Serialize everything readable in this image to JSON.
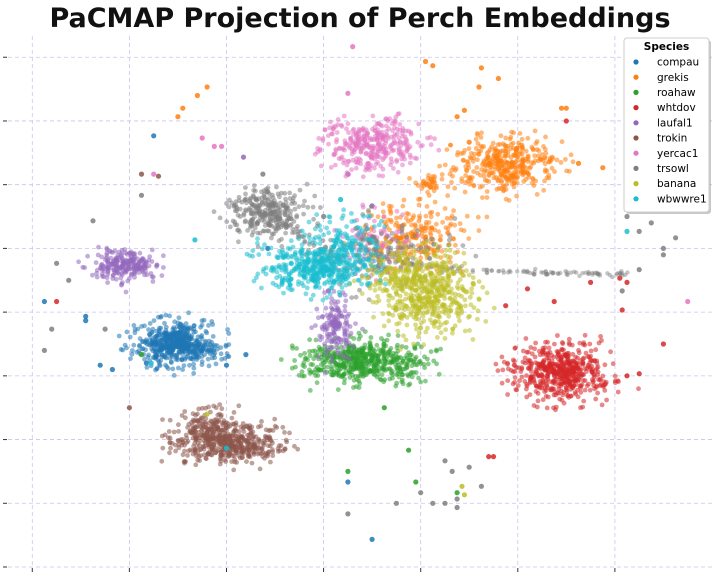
{
  "chart_data": {
    "type": "scatter",
    "title": "PaCMAP Projection of Perch Embeddings",
    "xlabel": "",
    "ylabel": "",
    "xlim": [
      -15,
      14
    ],
    "ylim": [
      -12,
      13
    ],
    "grid": true,
    "grid_style": "dashed",
    "grid_color": "#c8c3f0",
    "tick_labels_visible": false,
    "legend": {
      "title": "Species",
      "placement": "top-right"
    },
    "series": [
      {
        "name": "compau",
        "color": "#1f77b4",
        "clusters": [
          {
            "center": [
              -8.0,
              -1.5
            ],
            "spread": [
              0.75,
              0.45
            ],
            "count": 520,
            "tail": [
              [
                -6.4,
                -1.8
              ]
            ]
          }
        ],
        "outliers": [
          [
            -13.5,
            0.5
          ],
          [
            -11.8,
            -0.2
          ],
          [
            -11.8,
            -0.4
          ],
          [
            -10.7,
            -2.7
          ],
          [
            -9.3,
            -2.4
          ],
          [
            -11.2,
            -2.5
          ],
          [
            -9.0,
            8.3
          ],
          [
            -6.0,
            -2.5
          ],
          [
            -5.2,
            -2.0
          ],
          [
            -1.0,
            -8.0
          ],
          [
            0.0,
            -10.7
          ],
          [
            -4.3,
            3.0
          ]
        ]
      },
      {
        "name": "grekis",
        "color": "#ff7f0e",
        "clusters": [
          {
            "center": [
              5.5,
              7.0
            ],
            "spread": [
              0.9,
              0.55
            ],
            "count": 380
          },
          {
            "center": [
              1.8,
              3.6
            ],
            "spread": [
              1.0,
              0.7
            ],
            "count": 230
          },
          {
            "center": [
              2.4,
              6.0
            ],
            "spread": [
              0.35,
              0.25
            ],
            "count": 40
          }
        ],
        "outliers": [
          [
            2.2,
            11.8
          ],
          [
            2.5,
            11.6
          ],
          [
            4.5,
            11.5
          ],
          [
            4.4,
            10.6
          ],
          [
            3.8,
            9.5
          ],
          [
            4.0,
            8.0
          ],
          [
            7.8,
            9.6
          ],
          [
            8.0,
            9.6
          ],
          [
            -6.8,
            10.6
          ],
          [
            -7.2,
            10.2
          ],
          [
            -8.0,
            9.2
          ],
          [
            -7.8,
            9.6
          ],
          [
            8.5,
            7.0
          ],
          [
            9.5,
            6.8
          ],
          [
            10.5,
            5.8
          ],
          [
            3.5,
            9.2
          ],
          [
            5.2,
            11.0
          ]
        ]
      },
      {
        "name": "roahaw",
        "color": "#2ca02c",
        "clusters": [
          {
            "center": [
              -0.3,
              -2.3
            ],
            "spread": [
              1.1,
              0.45
            ],
            "count": 520
          }
        ],
        "outliers": [
          [
            0.5,
            -4.5
          ],
          [
            1.5,
            -6.5
          ],
          [
            1.8,
            -8.0
          ],
          [
            3.5,
            -8.5
          ],
          [
            -9.5,
            -2.0
          ],
          [
            -1.0,
            -7.5
          ]
        ]
      },
      {
        "name": "whtdov",
        "color": "#d62728",
        "clusters": [
          {
            "center": [
              7.8,
              -2.8
            ],
            "spread": [
              0.85,
              0.6
            ],
            "count": 540
          }
        ],
        "outliers": [
          [
            10.2,
            1.6
          ],
          [
            10.5,
            1.4
          ],
          [
            9.0,
            1.4
          ],
          [
            6.4,
            1.1
          ],
          [
            7.5,
            0.5
          ],
          [
            5.5,
            0.3
          ],
          [
            5.0,
            -6.8
          ],
          [
            4.8,
            -6.8
          ],
          [
            11.0,
            -2.9
          ],
          [
            12.0,
            -1.5
          ],
          [
            10.5,
            -3.0
          ],
          [
            10.3,
            0.1
          ],
          [
            8.0,
            9.0
          ],
          [
            -13.0,
            0.5
          ]
        ]
      },
      {
        "name": "laufal1",
        "color": "#9467bd",
        "clusters": [
          {
            "center": [
              -10.2,
              2.2
            ],
            "spread": [
              0.55,
              0.35
            ],
            "count": 220
          },
          {
            "center": [
              -1.5,
              -0.8
            ],
            "spread": [
              0.35,
              0.7
            ],
            "count": 120,
            "tail": [
              [
                -1.5,
                0.5
              ]
            ]
          }
        ],
        "outliers": [
          [
            -5.3,
            7.3
          ],
          [
            -1.8,
            1.0
          ],
          [
            -1.0,
            6.5
          ],
          [
            0.0,
            5.0
          ]
        ]
      },
      {
        "name": "trokin",
        "color": "#8c564b",
        "clusters": [
          {
            "center": [
              -6.6,
              -5.8
            ],
            "spread": [
              0.75,
              0.5
            ],
            "count": 330
          },
          {
            "center": [
              -5.2,
              -6.3
            ],
            "spread": [
              0.8,
              0.35
            ],
            "count": 240
          }
        ],
        "outliers": [
          [
            -10.0,
            -4.5
          ],
          [
            -9.5,
            6.5
          ],
          [
            -8.8,
            6.4
          ]
        ]
      },
      {
        "name": "yercac1",
        "color": "#e377c2",
        "clusters": [
          {
            "center": [
              0.0,
              7.9
            ],
            "spread": [
              0.85,
              0.55
            ],
            "count": 330
          },
          {
            "center": [
              0.2,
              3.2
            ],
            "spread": [
              0.7,
              0.6
            ],
            "count": 80
          }
        ],
        "outliers": [
          [
            -0.8,
            12.5
          ],
          [
            -1.0,
            10.3
          ],
          [
            -6.5,
            7.8
          ],
          [
            -6.2,
            7.8
          ],
          [
            -7.0,
            8.2
          ],
          [
            -9.0,
            6.5
          ],
          [
            13.0,
            0.5
          ]
        ]
      },
      {
        "name": "trsowl",
        "color": "#7f7f7f",
        "clusters": [
          {
            "center": [
              -4.3,
              4.7
            ],
            "spread": [
              0.7,
              0.55
            ],
            "count": 290,
            "tail": [
              [
                -2.0,
                2.9
              ]
            ]
          },
          {
            "center": [
              0.2,
              2.8
            ],
            "spread": [
              1.3,
              0.7
            ],
            "count": 160
          }
        ],
        "streams": [
          {
            "from": [
              1.3,
              2.3
            ],
            "to": [
              10.5,
              1.8
            ],
            "count": 110
          }
        ],
        "outliers": [
          [
            -11.5,
            4.3
          ],
          [
            -13.0,
            2.3
          ],
          [
            -12.5,
            1.5
          ],
          [
            -13.5,
            -1.8
          ],
          [
            -13.2,
            -0.8
          ],
          [
            -11.0,
            -0.8
          ],
          [
            -9.5,
            5.5
          ],
          [
            -4.5,
            6.5
          ],
          [
            12.0,
            2.7
          ],
          [
            11.5,
            4.2
          ],
          [
            11.0,
            3.8
          ],
          [
            12.5,
            3.5
          ],
          [
            10.3,
            1.0
          ],
          [
            11.0,
            2.0
          ],
          [
            11.0,
            5.8
          ],
          [
            12.3,
            5.2
          ],
          [
            10.5,
            4.5
          ],
          [
            -2.0,
            4.5
          ],
          [
            3.0,
            -7.0
          ],
          [
            3.3,
            -7.5
          ],
          [
            4.0,
            -7.3
          ],
          [
            4.5,
            -8.2
          ],
          [
            1.0,
            -9.0
          ],
          [
            2.0,
            -8.5
          ],
          [
            3.5,
            -8.8
          ],
          [
            3.0,
            -9.0
          ],
          [
            3.5,
            -9.2
          ],
          [
            -1.0,
            -9.5
          ],
          [
            2.5,
            -9.0
          ],
          [
            12.0,
            3.0
          ]
        ]
      },
      {
        "name": "banana",
        "color": "#bcbd22",
        "clusters": [
          {
            "center": [
              2.3,
              0.8
            ],
            "spread": [
              0.9,
              0.8
            ],
            "count": 460
          },
          {
            "center": [
              1.0,
              1.9
            ],
            "spread": [
              0.7,
              0.45
            ],
            "count": 120
          }
        ],
        "outliers": [
          [
            -6.8,
            -4.8
          ],
          [
            3.7,
            -8.2
          ],
          [
            3.8,
            -8.6
          ]
        ]
      },
      {
        "name": "wbwwre1",
        "color": "#17becf",
        "clusters": [
          {
            "center": [
              -2.3,
              2.1
            ],
            "spread": [
              1.0,
              0.55
            ],
            "count": 470
          },
          {
            "center": [
              -1.0,
              3.5
            ],
            "spread": [
              0.6,
              0.45
            ],
            "count": 100
          }
        ],
        "outliers": [
          [
            -7.3,
            3.4
          ],
          [
            -9.1,
            -2.4
          ],
          [
            -6.0,
            -6.4
          ],
          [
            10.5,
            3.8
          ],
          [
            -1.3,
            5.3
          ]
        ]
      }
    ]
  }
}
